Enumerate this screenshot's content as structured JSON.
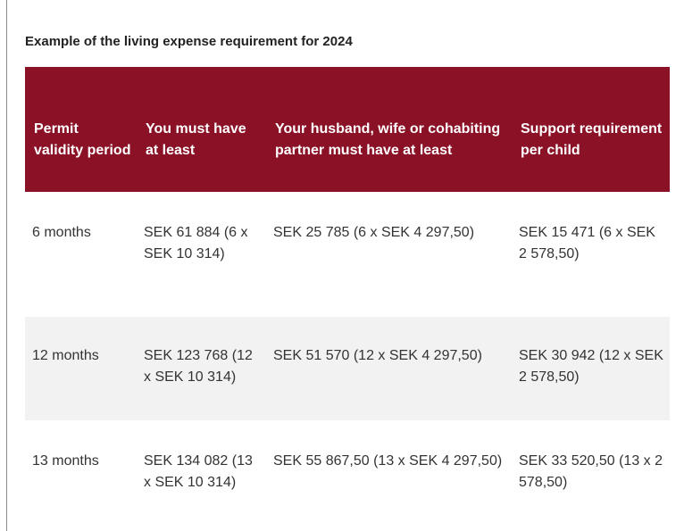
{
  "caption": "Example of the living expense requirement for 2024",
  "table": {
    "headers": [
      "Permit validity period",
      "You must have at least",
      "Your husband, wife or cohabiting partner must have at least",
      "Support requirement per child"
    ],
    "rows": [
      [
        "6 months",
        "SEK 61 884 (6 x SEK 10 314)",
        "SEK 25 785 (6 x SEK 4 297,50)",
        "SEK 15 471 (6 x SEK 2 578,50)"
      ],
      [
        "12 months",
        "SEK 123 768 (12 x SEK 10 314)",
        "SEK 51 570 (12 x SEK 4 297,50)",
        "SEK 30 942 (12 x SEK 2 578,50)"
      ],
      [
        "13 months",
        "SEK 134 082 (13 x SEK 10 314)",
        "SEK 55 867,50 (13 x SEK 4 297,50)",
        "SEK 33 520,50 (13 x 2 578,50)"
      ]
    ]
  },
  "colors": {
    "header_bg": "#8b1126",
    "stripe_bg": "#f2f2f2",
    "text": "#333333"
  }
}
